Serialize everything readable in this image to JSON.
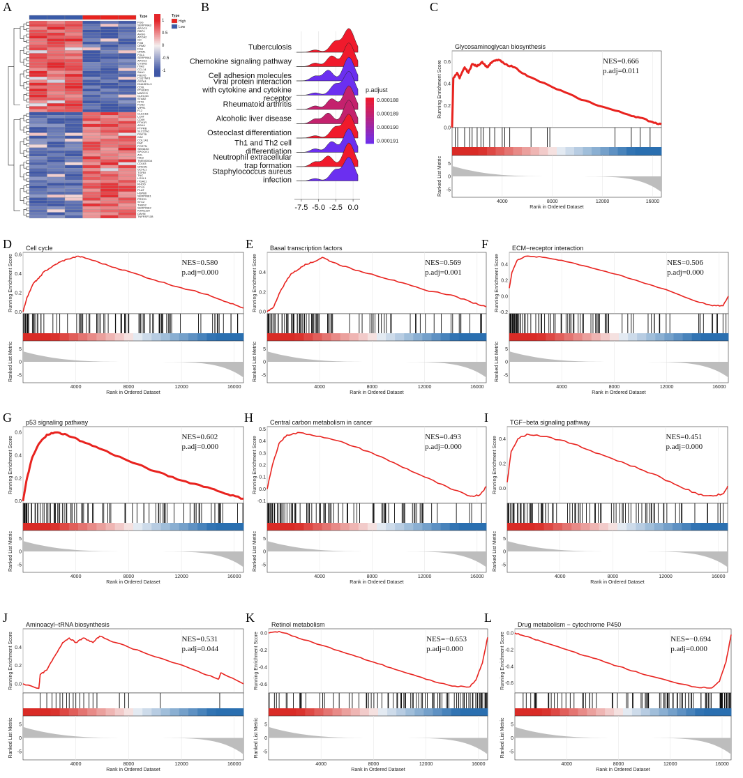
{
  "figure": {
    "panel_letters": [
      "A",
      "B",
      "C",
      "D",
      "E",
      "F",
      "G",
      "H",
      "I",
      "J",
      "K",
      "L"
    ]
  },
  "colors": {
    "red": "#e8231f",
    "blue": "#3a5ba8",
    "heat_high": "#e8231f",
    "heat_low": "#3a5ba8",
    "rank_fill": "#bdbdbd"
  },
  "heatmap": {
    "type_label": "Type",
    "legend_title": "Type",
    "legend_items": [
      {
        "label": "High",
        "color": "#e8231f"
      },
      {
        "label": "Low",
        "color": "#3a5ba8"
      }
    ],
    "scale_ticks": [
      "1",
      "0.5",
      "0",
      "-0.5",
      "-1"
    ],
    "genes": [
      "FGG",
      "SERPINA3",
      "APOC3",
      "RBP4",
      "AHSG",
      "APOA2",
      "GC",
      "FGB",
      "ORM2",
      "FGA",
      "ORM1",
      "FGL1",
      "SERPINA1",
      "APOC2",
      "CYSM2",
      "ITIH2",
      "CCL14",
      "SAA1",
      "FBLN5",
      "C1QTNF3",
      "GSTA1",
      "DNASE1L3",
      "CD5L",
      "PTGER3",
      "MARCO",
      "CLEC4G",
      "STAB2",
      "OIT3",
      "FCN2",
      "VIPR1",
      "F12",
      "CLEC1B",
      "LCAT",
      "CD09",
      "PTH1R",
      "ADH4",
      "PTPRB",
      "SLC22A1",
      "PDE7B",
      "CA2",
      "COL1A1",
      "FAP",
      "POSTN",
      "SEMA3G",
      "SPOCK1",
      "AXL",
      "NID2",
      "TMEM200A",
      "CD163",
      "GREM1",
      "GCHL1",
      "TGFBI",
      "TNC",
      "LOXL1",
      "ITGA11",
      "RHOD",
      "PTX3",
      "PLAT",
      "HSPB6",
      "SERPINE1",
      "PRSS1",
      "STC2",
      "THBS2",
      "SERPINE2",
      "KIAA1199",
      "OAHN",
      "TNFRSF11B"
    ]
  },
  "chart_data": [
    {
      "panel": "B",
      "type": "ridgeline",
      "categories": [
        "Tuberculosis",
        "Chemokine signaling pathway",
        "Cell adhesion molecules",
        "Viral protein interaction with cytokine and cytokine receptor",
        "Rheumatoid arthritis",
        "Alcoholic liver disease",
        "Osteoclast differentiation",
        "Th1 and Th2 cell differentiation",
        "Neutrophil extracellular trap formation",
        "Staphylococcus aureus infection"
      ],
      "labels": [
        "Tuberculosis",
        "Chemokine signaling pathway",
        "Cell adhesion molecules",
        "Viral protein interaction\nwith cytokine and cytokine\nreceptor",
        "Rheumatoid arthritis",
        "Alcoholic liver disease",
        "Osteoclast differentiation",
        "Th1 and Th2 cell\ndifferentiation",
        "Neutrophil extracellular\ntrap formation",
        "Staphylococcus aureus\ninfection"
      ],
      "p_adjust": [
        0.000188,
        0.000188,
        0.000191,
        0.000191,
        0.000189,
        0.000189,
        0.000188,
        0.000191,
        0.000188,
        0.000191
      ],
      "x_ticks": [
        "-7.5",
        "-5.0",
        "-2.5",
        "0.0"
      ],
      "xlim": [
        -8.5,
        1
      ],
      "legend_title": "p.adjust",
      "legend_ticks": [
        "0.000188",
        "0.000189",
        "0.000190",
        "0.000191"
      ]
    },
    {
      "panel": "C",
      "type": "gsea",
      "title": "Glycosaminoglycan biosynthesis",
      "nes": "NES=0.666",
      "padj": "p.adj=0.011",
      "ylim": [
        0,
        0.7
      ],
      "yticks": [
        "0.6",
        "0.4",
        "0.2",
        "0.0"
      ],
      "xticks": [
        "4000",
        "8000",
        "12000",
        "16000"
      ],
      "rank_yticks": [
        "5",
        "0",
        "-5"
      ],
      "ylabel": "Running Enrichment Score",
      "rank_ylabel": "Ranked List Metric",
      "xlabel": "Rank in Ordered Dataset",
      "es_points": [
        [
          0,
          0
        ],
        [
          100,
          0.45
        ],
        [
          400,
          0.5
        ],
        [
          600,
          0.45
        ],
        [
          1000,
          0.55
        ],
        [
          1300,
          0.5
        ],
        [
          1600,
          0.58
        ],
        [
          2000,
          0.56
        ],
        [
          2400,
          0.6
        ],
        [
          2800,
          0.55
        ],
        [
          3200,
          0.6
        ],
        [
          3700,
          0.62
        ],
        [
          4200,
          0.58
        ],
        [
          5000,
          0.55
        ],
        [
          6000,
          0.47
        ],
        [
          8000,
          0.37
        ],
        [
          10000,
          0.27
        ],
        [
          12000,
          0.19
        ],
        [
          14000,
          0.12
        ],
        [
          15000,
          0.09
        ],
        [
          16000,
          0.05
        ],
        [
          16700,
          0.03
        ]
      ],
      "hits": [
        250,
        450,
        1000,
        1400,
        1600,
        2000,
        2300,
        2500,
        3000,
        3400,
        4000,
        4200,
        4600,
        6300,
        7600,
        7800,
        13000,
        14300,
        15000,
        15800
      ],
      "color_profile": "pos"
    },
    {
      "panel": "D",
      "type": "gsea",
      "title": "Cell cycle",
      "nes": "NES=0.580",
      "padj": "p.adj=0.000",
      "ylim": [
        -0.02,
        0.62
      ],
      "yticks": [
        "0.6",
        "0.4",
        "0.2",
        "0.0"
      ],
      "xticks": [
        "4000",
        "8000",
        "12000",
        "16000"
      ],
      "rank_yticks": [
        "5",
        "0",
        "-5"
      ],
      "ylabel": "Running Enrichment Score",
      "rank_ylabel": "Ranked List Metric",
      "xlabel": "Rank in Ordered Dataset",
      "es_points": [
        [
          0,
          0
        ],
        [
          300,
          0.15
        ],
        [
          800,
          0.3
        ],
        [
          1200,
          0.35
        ],
        [
          1600,
          0.42
        ],
        [
          2200,
          0.47
        ],
        [
          2800,
          0.52
        ],
        [
          3400,
          0.55
        ],
        [
          4200,
          0.58
        ],
        [
          5000,
          0.55
        ],
        [
          6500,
          0.48
        ],
        [
          8000,
          0.42
        ],
        [
          10000,
          0.33
        ],
        [
          12000,
          0.25
        ],
        [
          14000,
          0.18
        ],
        [
          15500,
          0.1
        ],
        [
          16700,
          0.04
        ]
      ],
      "hits": "dense_pos",
      "color_profile": "pos"
    },
    {
      "panel": "E",
      "type": "gsea",
      "title": "Basal transcription factors",
      "nes": "NES=0.569",
      "padj": "p.adj=0.001",
      "ylim": [
        -0.02,
        0.6
      ],
      "yticks": [
        "0.4",
        "0.2",
        "0.0"
      ],
      "xticks": [
        "4000",
        "8000",
        "12000",
        "16000"
      ],
      "rank_yticks": [
        "5",
        "0",
        "-5"
      ],
      "ylabel": "Running Enrichment Score",
      "rank_ylabel": "Ranked List Metric",
      "xlabel": "Rank in Ordered Dataset",
      "es_points": [
        [
          0,
          0
        ],
        [
          500,
          0.05
        ],
        [
          900,
          0.18
        ],
        [
          1400,
          0.3
        ],
        [
          1800,
          0.38
        ],
        [
          2400,
          0.43
        ],
        [
          2900,
          0.48
        ],
        [
          3500,
          0.5
        ],
        [
          4200,
          0.55
        ],
        [
          5000,
          0.5
        ],
        [
          6500,
          0.43
        ],
        [
          8000,
          0.38
        ],
        [
          10000,
          0.3
        ],
        [
          12000,
          0.22
        ],
        [
          14000,
          0.17
        ],
        [
          15500,
          0.1
        ],
        [
          16700,
          0.05
        ]
      ],
      "hits": "dense_pos",
      "color_profile": "pos"
    },
    {
      "panel": "F",
      "type": "gsea",
      "title": "ECM−receptor interaction",
      "nes": "NES=0.506",
      "padj": "p.adj=0.000",
      "ylim": [
        -0.22,
        0.55
      ],
      "yticks": [
        "0.4",
        "0.2",
        "0.0",
        "-0.2"
      ],
      "xticks": [
        "4000",
        "8000",
        "12000",
        "16000"
      ],
      "rank_yticks": [
        "5",
        "0",
        "-5"
      ],
      "ylabel": "Running Enrichment Score",
      "rank_ylabel": "Ranked List Metric",
      "xlabel": "Rank in Ordered Dataset",
      "es_points": [
        [
          0,
          0.1
        ],
        [
          200,
          0.3
        ],
        [
          600,
          0.45
        ],
        [
          1200,
          0.5
        ],
        [
          2500,
          0.49
        ],
        [
          4000,
          0.45
        ],
        [
          6000,
          0.37
        ],
        [
          8000,
          0.28
        ],
        [
          10000,
          0.18
        ],
        [
          12000,
          0.08
        ],
        [
          14000,
          -0.05
        ],
        [
          15500,
          -0.12
        ],
        [
          16300,
          -0.12
        ],
        [
          16700,
          0.0
        ]
      ],
      "hits": "dense_pos",
      "color_profile": "pos"
    },
    {
      "panel": "G",
      "type": "gsea",
      "title": "p53 signaling pathway",
      "nes": "NES=0.602",
      "padj": "p.adj=0.000",
      "ylim": [
        -0.02,
        0.65
      ],
      "yticks": [
        "0.6",
        "0.4",
        "0.2",
        "0.0"
      ],
      "xticks": [
        "4000",
        "8000",
        "12000",
        "16000"
      ],
      "rank_yticks": [
        "5",
        "0",
        "-5"
      ],
      "ylabel": "Running Enrichment Score",
      "rank_ylabel": "Ranked List Metric",
      "xlabel": "Rank in Ordered Dataset",
      "es_points": [
        [
          0,
          0
        ],
        [
          300,
          0.2
        ],
        [
          700,
          0.38
        ],
        [
          1200,
          0.5
        ],
        [
          1800,
          0.58
        ],
        [
          2500,
          0.6
        ],
        [
          3300,
          0.58
        ],
        [
          4500,
          0.52
        ],
        [
          6000,
          0.45
        ],
        [
          8000,
          0.35
        ],
        [
          10000,
          0.26
        ],
        [
          12000,
          0.18
        ],
        [
          14000,
          0.12
        ],
        [
          15500,
          0.06
        ],
        [
          16700,
          0.02
        ]
      ],
      "hits": "dense_pos",
      "color_profile": "pos"
    },
    {
      "panel": "H",
      "type": "gsea",
      "title": "Central carbon metabolism in cancer",
      "nes": "NES=0.493",
      "padj": "p.adj=0.000",
      "ylim": [
        -0.12,
        0.52
      ],
      "yticks": [
        "0.5",
        "0.4",
        "0.3",
        "0.2",
        "0.1",
        "0.0",
        "-0.1"
      ],
      "xticks": [
        "4000",
        "8000",
        "12000",
        "16000"
      ],
      "rank_yticks": [
        "5",
        "0",
        "-5"
      ],
      "ylabel": "Running Enrichment Score",
      "rank_ylabel": "Ranked List Metric",
      "xlabel": "Rank in Ordered Dataset",
      "es_points": [
        [
          0,
          0
        ],
        [
          400,
          0.2
        ],
        [
          900,
          0.38
        ],
        [
          1500,
          0.45
        ],
        [
          2500,
          0.47
        ],
        [
          4000,
          0.44
        ],
        [
          6000,
          0.38
        ],
        [
          8000,
          0.3
        ],
        [
          10000,
          0.2
        ],
        [
          12000,
          0.1
        ],
        [
          14000,
          0.0
        ],
        [
          15500,
          -0.06
        ],
        [
          16200,
          -0.05
        ],
        [
          16700,
          0.02
        ]
      ],
      "hits": "dense_pos",
      "color_profile": "pos"
    },
    {
      "panel": "I",
      "type": "gsea",
      "title": "TGF−beta signaling pathway",
      "nes": "NES=0.451",
      "padj": "p.adj=0.000",
      "ylim": [
        -0.12,
        0.5
      ],
      "yticks": [
        "0.4",
        "0.2",
        "0.0"
      ],
      "xticks": [
        "4000",
        "8000",
        "12000",
        "16000"
      ],
      "rank_yticks": [
        "5",
        "0",
        "-5"
      ],
      "ylabel": "Running Enrichment Score",
      "rank_ylabel": "Ranked List Metric",
      "xlabel": "Rank in Ordered Dataset",
      "es_points": [
        [
          0,
          0.05
        ],
        [
          300,
          0.3
        ],
        [
          800,
          0.4
        ],
        [
          1500,
          0.44
        ],
        [
          3000,
          0.42
        ],
        [
          5000,
          0.36
        ],
        [
          7000,
          0.28
        ],
        [
          9000,
          0.2
        ],
        [
          11000,
          0.12
        ],
        [
          13000,
          0.02
        ],
        [
          14500,
          -0.05
        ],
        [
          15600,
          -0.06
        ],
        [
          16400,
          -0.04
        ],
        [
          16700,
          0.02
        ]
      ],
      "hits": "dense_pos",
      "color_profile": "pos"
    },
    {
      "panel": "J",
      "type": "gsea",
      "title": "Aminoacyl−tRNA biosynthesis",
      "nes": "NES=0.531",
      "padj": "p.adj=0.044",
      "ylim": [
        -0.1,
        0.6
      ],
      "yticks": [
        "0.4",
        "0.2",
        "0.0"
      ],
      "xticks": [
        "4000",
        "8000",
        "12000",
        "16000"
      ],
      "rank_yticks": [
        "5",
        "0",
        "-5"
      ],
      "ylabel": "Running Enrichment Score",
      "rank_ylabel": "Ranked List Metric",
      "xlabel": "Rank in Ordered Dataset",
      "es_points": [
        [
          0,
          0
        ],
        [
          1200,
          -0.05
        ],
        [
          1300,
          0.1
        ],
        [
          1800,
          0.15
        ],
        [
          2400,
          0.3
        ],
        [
          3000,
          0.45
        ],
        [
          3500,
          0.5
        ],
        [
          4000,
          0.45
        ],
        [
          4600,
          0.5
        ],
        [
          5300,
          0.45
        ],
        [
          5800,
          0.52
        ],
        [
          7000,
          0.45
        ],
        [
          9000,
          0.35
        ],
        [
          11000,
          0.25
        ],
        [
          13000,
          0.15
        ],
        [
          14800,
          0.05
        ],
        [
          15000,
          0.12
        ],
        [
          16700,
          0.0
        ]
      ],
      "hits": [
        1300,
        1800,
        2200,
        2500,
        2800,
        3000,
        3300,
        3500,
        3800,
        4000,
        4300,
        4600,
        5000,
        5300,
        5600,
        7300,
        7700,
        8000,
        10400,
        14900
      ],
      "color_profile": "pos"
    },
    {
      "panel": "K",
      "type": "gsea",
      "title": "Retinol metabolism",
      "nes": "NES=−0.653",
      "padj": "p.adj=0.000",
      "ylim": [
        -0.7,
        0.05
      ],
      "yticks": [
        "0.0",
        "-0.2",
        "-0.4",
        "-0.6"
      ],
      "xticks": [
        "4000",
        "8000",
        "12000",
        "16000"
      ],
      "rank_yticks": [
        "5",
        "0",
        "-5"
      ],
      "ylabel": "Running Enrichment Score",
      "rank_ylabel": "Ranked List Metric",
      "xlabel": "Rank in Ordered Dataset",
      "es_points": [
        [
          0,
          0
        ],
        [
          800,
          0.02
        ],
        [
          2000,
          -0.04
        ],
        [
          4000,
          -0.14
        ],
        [
          6000,
          -0.24
        ],
        [
          8000,
          -0.34
        ],
        [
          10000,
          -0.44
        ],
        [
          12000,
          -0.54
        ],
        [
          14000,
          -0.62
        ],
        [
          15300,
          -0.63
        ],
        [
          15800,
          -0.55
        ],
        [
          16300,
          -0.35
        ],
        [
          16700,
          -0.05
        ]
      ],
      "hits": "dense_neg",
      "color_profile": "neg"
    },
    {
      "panel": "L",
      "type": "gsea",
      "title": "Drug metabolism − cytochrome P450",
      "nes": "NES=−0.694",
      "padj": "p.adj=0.000",
      "ylim": [
        -0.72,
        0.05
      ],
      "yticks": [
        "0.0",
        "-0.2",
        "-0.4",
        "-0.6"
      ],
      "xticks": [
        "4000",
        "8000",
        "12000",
        "16000"
      ],
      "rank_yticks": [
        "5",
        "0",
        "-5"
      ],
      "ylabel": "Running Enrichment Score",
      "rank_ylabel": "Ranked List Metric",
      "xlabel": "Rank in Ordered Dataset",
      "es_points": [
        [
          0,
          0
        ],
        [
          800,
          -0.04
        ],
        [
          2000,
          -0.1
        ],
        [
          4000,
          -0.2
        ],
        [
          6000,
          -0.3
        ],
        [
          8000,
          -0.4
        ],
        [
          10000,
          -0.5
        ],
        [
          12000,
          -0.58
        ],
        [
          14000,
          -0.65
        ],
        [
          15200,
          -0.66
        ],
        [
          15800,
          -0.58
        ],
        [
          16300,
          -0.35
        ],
        [
          16700,
          -0.02
        ]
      ],
      "hits": "dense_neg",
      "color_profile": "neg"
    }
  ]
}
